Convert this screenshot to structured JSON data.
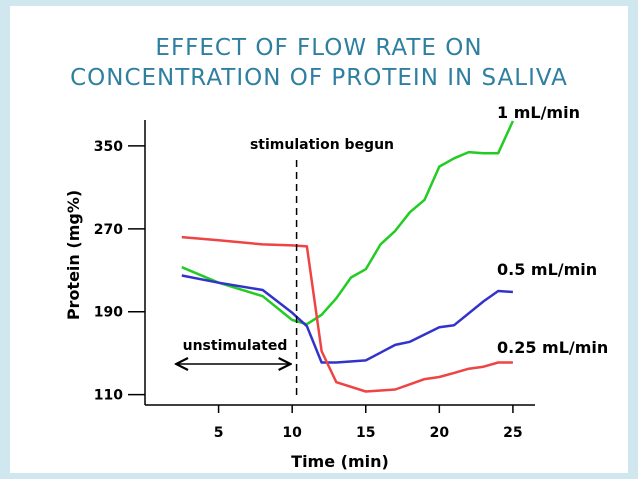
{
  "slide": {
    "title_line1": "EFFECT OF FLOW RATE ON",
    "title_line2": "CONCENTRATION OF PROTEIN IN SALIVA",
    "title_color": "#2e7fa0",
    "frame_color": "#d0e7f0"
  },
  "chart_data": {
    "type": "line",
    "xlabel": "Time (min)",
    "ylabel": "Protein (mg%)",
    "xticks": [
      5,
      10,
      15,
      20,
      25
    ],
    "yticks": [
      110,
      190,
      270,
      350
    ],
    "xlim": [
      0,
      26.5
    ],
    "ylim": [
      100,
      375
    ],
    "grid": false,
    "annotations": {
      "stimulation": "stimulation begun",
      "stimulation_x": 10.3,
      "unstimulated": "unstimulated"
    },
    "series": [
      {
        "name": "1 mL/min",
        "color": "#22cc22",
        "x": [
          2.5,
          5,
          8,
          10,
          11,
          12,
          13,
          14,
          15,
          16,
          17,
          18,
          19,
          20,
          21,
          22,
          23,
          24,
          25
        ],
        "y": [
          233,
          218,
          205,
          182,
          178,
          187,
          203,
          223,
          231,
          255,
          268,
          286,
          298,
          330,
          338,
          344,
          343,
          343,
          374
        ]
      },
      {
        "name": "0.5 mL/min",
        "color": "#3333cc",
        "x": [
          2.5,
          5,
          8,
          10,
          11,
          12,
          13,
          15,
          17,
          18,
          20,
          21,
          23,
          24,
          25
        ],
        "y": [
          225,
          218,
          211,
          189,
          176,
          141,
          141,
          143,
          158,
          161,
          175,
          177,
          200,
          210,
          209
        ]
      },
      {
        "name": "0.25 mL/min",
        "color": "#ee4444",
        "x": [
          2.5,
          5,
          8,
          10,
          11,
          12,
          13,
          15,
          16,
          17,
          18,
          19,
          20,
          21,
          22,
          23,
          24,
          25
        ],
        "y": [
          262,
          259,
          255,
          254,
          253,
          152,
          122,
          113,
          114,
          115,
          120,
          125,
          127,
          131,
          135,
          137,
          141,
          141
        ]
      }
    ]
  }
}
